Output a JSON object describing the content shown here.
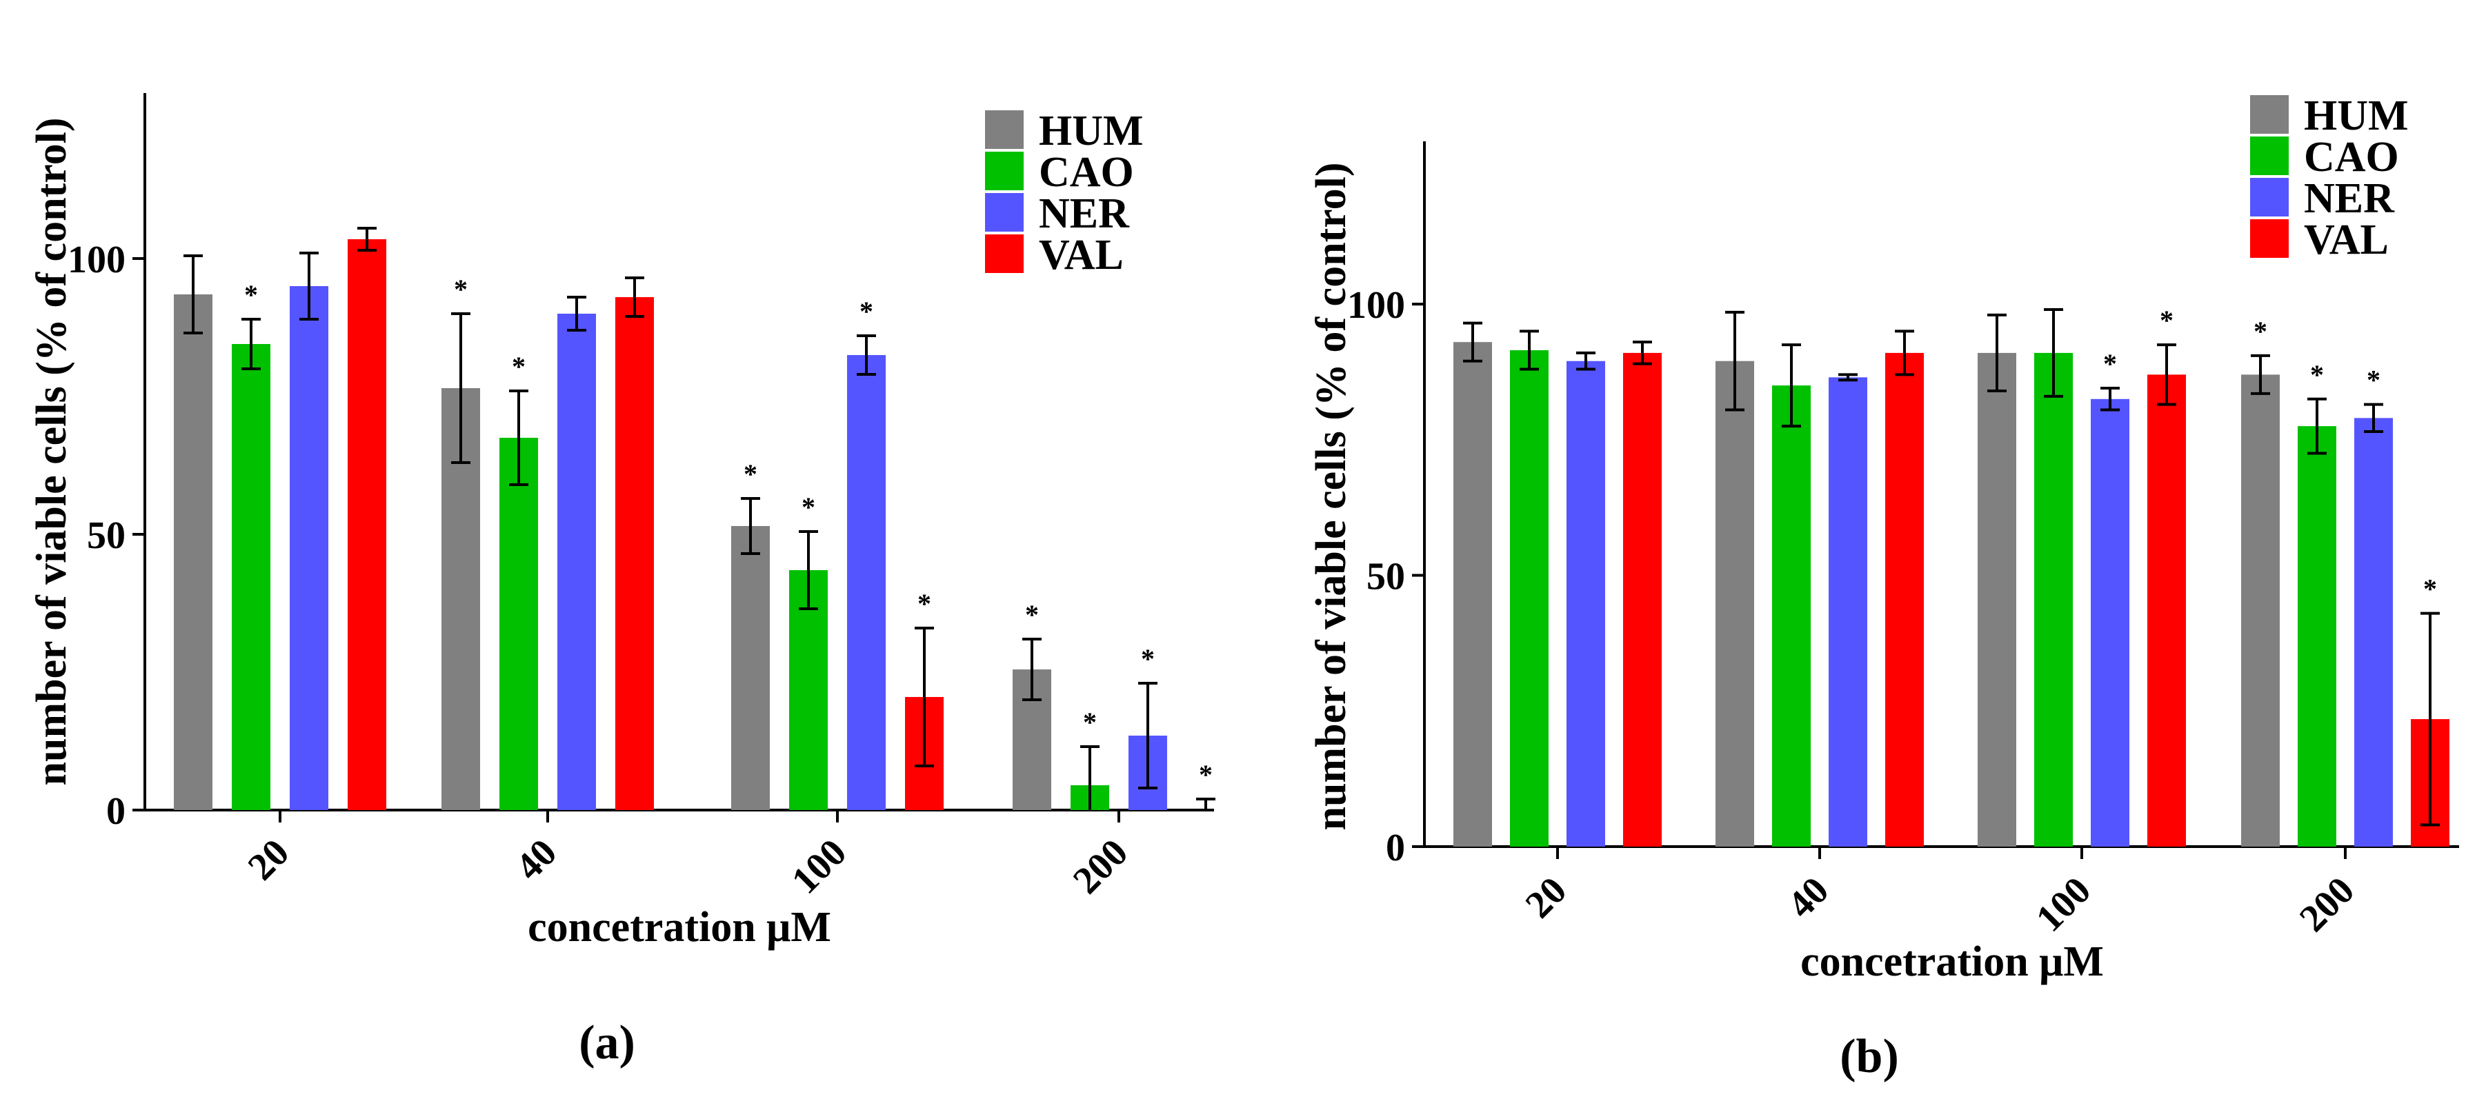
{
  "chart_data": [
    {
      "type": "bar",
      "panel_label": "(a)",
      "title": "",
      "xlabel": "concetration μM",
      "ylabel": "number of viable cells (% of control)",
      "ylim": [
        0,
        130
      ],
      "yticks": [
        0,
        50,
        100
      ],
      "categories": [
        "20",
        "40",
        "100",
        "200"
      ],
      "legend": "top-right",
      "series": [
        {
          "name": "HUM",
          "color": "#808080",
          "values": [
            93.5,
            76.5,
            51.5,
            25.5
          ],
          "errors": [
            7,
            13.5,
            5,
            5.5
          ],
          "sig": [
            false,
            true,
            true,
            true
          ]
        },
        {
          "name": "CAO",
          "color": "#00c000",
          "values": [
            84.5,
            67.5,
            43.5,
            4.5
          ],
          "errors": [
            4.5,
            8.5,
            7,
            7
          ],
          "sig": [
            true,
            true,
            true,
            true
          ]
        },
        {
          "name": "NER",
          "color": "#5555ff",
          "values": [
            95,
            90,
            82.5,
            13.5
          ],
          "errors": [
            6,
            3,
            3.5,
            9.5
          ],
          "sig": [
            false,
            false,
            true,
            true
          ]
        },
        {
          "name": "VAL",
          "color": "#ff0000",
          "values": [
            103.5,
            93,
            20.5,
            0
          ],
          "errors": [
            2,
            3.5,
            12.5,
            2
          ],
          "sig": [
            false,
            false,
            true,
            true
          ]
        }
      ],
      "significance_marker": "*"
    },
    {
      "type": "bar",
      "panel_label": "(b)",
      "title": "",
      "xlabel": "concetration μM",
      "ylabel": "number of viable cells (% of control)",
      "ylim": [
        0,
        130
      ],
      "yticks": [
        0,
        50,
        100
      ],
      "categories": [
        "20",
        "40",
        "100",
        "200"
      ],
      "legend": "top-right",
      "series": [
        {
          "name": "HUM",
          "color": "#808080",
          "values": [
            93,
            89.5,
            91,
            87
          ],
          "errors": [
            3.5,
            9,
            7,
            3.5
          ],
          "sig": [
            false,
            false,
            false,
            true
          ]
        },
        {
          "name": "CAO",
          "color": "#00c000",
          "values": [
            91.5,
            85,
            91,
            77.5
          ],
          "errors": [
            3.5,
            7.5,
            8,
            5
          ],
          "sig": [
            false,
            false,
            false,
            true
          ]
        },
        {
          "name": "NER",
          "color": "#5555ff",
          "values": [
            89.5,
            86.5,
            82.5,
            79
          ],
          "errors": [
            1.5,
            0.5,
            2,
            2.5
          ],
          "sig": [
            false,
            false,
            true,
            true
          ]
        },
        {
          "name": "VAL",
          "color": "#ff0000",
          "values": [
            91,
            91,
            87,
            23.5
          ],
          "errors": [
            2,
            4,
            5.5,
            19.5
          ],
          "sig": [
            false,
            false,
            true,
            true
          ]
        }
      ],
      "significance_marker": "*"
    }
  ]
}
